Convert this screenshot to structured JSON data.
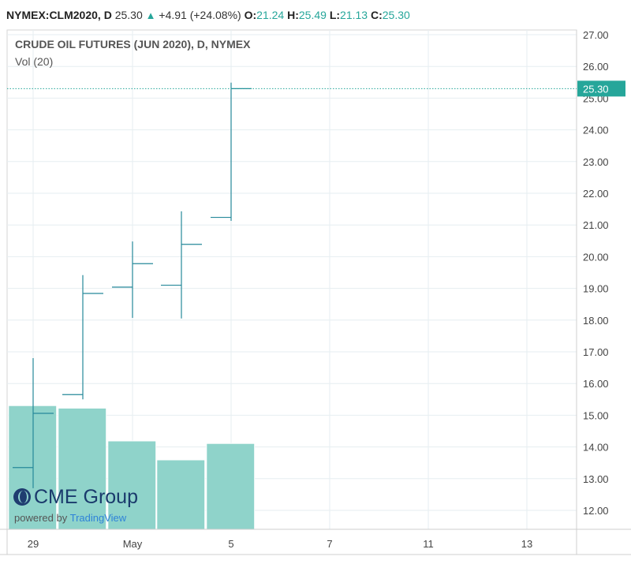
{
  "header": {
    "symbol": "NYMEX:CLM2020, D",
    "last": "25.30",
    "change": "+4.91 (+24.08%)",
    "open_label": "O:",
    "open": "21.24",
    "high_label": "H:",
    "high": "25.49",
    "low_label": "L:",
    "low": "21.13",
    "close_label": "C:",
    "close": "25.30"
  },
  "legend": {
    "title": "CRUDE OIL FUTURES (JUN 2020), D, NYMEX",
    "volume": "Vol (20)"
  },
  "branding": {
    "brand": "CME Group",
    "powered_by": "powered by",
    "provider": "TradingView"
  },
  "colors": {
    "bar": "#26899a",
    "volume": "#8fd3ca",
    "accent": "#26a69a",
    "grid": "#e6eef1",
    "axis_text": "#444444",
    "price_tag": "#26a69a"
  },
  "chart_data": {
    "type": "ohlc",
    "x_tick_labels": [
      "29",
      "May",
      "5",
      "7",
      "11",
      "13"
    ],
    "y_tick_labels": [
      "12.00",
      "13.00",
      "14.00",
      "15.00",
      "16.00",
      "17.00",
      "18.00",
      "19.00",
      "20.00",
      "21.00",
      "22.00",
      "23.00",
      "24.00",
      "25.00",
      "26.00",
      "27.00"
    ],
    "ylim": [
      11.4,
      27.1
    ],
    "last_price_label": "25.30",
    "last_price": 25.3,
    "ohlc": [
      {
        "open": 13.35,
        "high": 16.8,
        "low": 12.7,
        "close": 15.06
      },
      {
        "open": 15.65,
        "high": 19.42,
        "low": 15.5,
        "close": 18.84
      },
      {
        "open": 19.04,
        "high": 20.48,
        "low": 18.07,
        "close": 19.78
      },
      {
        "open": 19.1,
        "high": 21.43,
        "low": 18.05,
        "close": 20.39
      },
      {
        "open": 21.24,
        "high": 25.49,
        "low": 21.13,
        "close": 25.3
      }
    ],
    "volume_relative": [
      0.98,
      0.96,
      0.7,
      0.55,
      0.68
    ]
  }
}
